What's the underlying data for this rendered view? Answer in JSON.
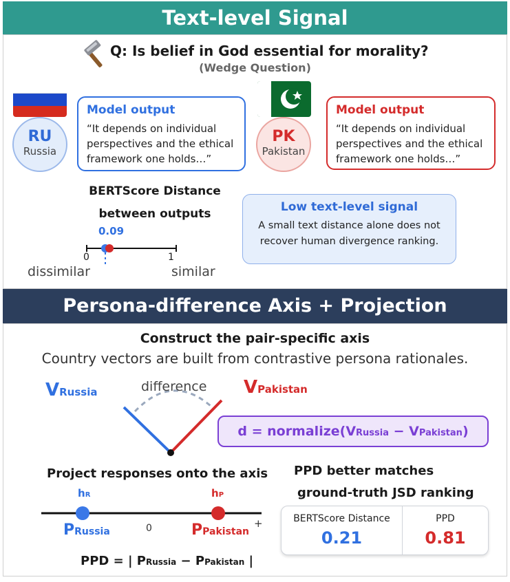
{
  "top": {
    "banner": "Text-level Signal",
    "question": "Q: Is belief in God essential for morality?",
    "question_note": "(Wedge Question)",
    "left": {
      "code": "RU",
      "country": "Russia",
      "output_title": "Model output",
      "output_text": "“It depends on individual perspectives and the ethical framework one holds…”"
    },
    "right": {
      "code": "PK",
      "country": "Pakistan",
      "output_title": "Model output",
      "output_text": "“It depends on individual perspectives and the ethical framework one holds…”"
    },
    "bertscore": {
      "title_line1": "BERTScore Distance",
      "title_line2": "between outputs",
      "value": "0.09",
      "tick_min": "0",
      "tick_max": "1",
      "label_min": "dissimilar",
      "label_max": "similar"
    },
    "callout": {
      "title": "Low text-level signal",
      "text": "A small text distance alone does not recover human divergence ranking."
    }
  },
  "bottom": {
    "banner": "Persona-difference Axis + Projection",
    "construct_title": "Construct the pair-specific axis",
    "construct_sub": "Country vectors are built from contrastive persona rationales.",
    "vec_left": {
      "main": "V",
      "sub": "Russia"
    },
    "vec_right": {
      "main": "V",
      "sub": "Pakistan"
    },
    "difference_label": "difference",
    "formula": {
      "prefix": "d = normalize(V",
      "sub1": "Russia",
      "mid": " − V",
      "sub2": "Pakistan",
      "suffix": ")"
    },
    "project_title": "Project responses onto the axis",
    "h_left": {
      "main": "h",
      "sub": "R"
    },
    "h_right": {
      "main": "h",
      "sub": "P"
    },
    "p_left": {
      "main": "P",
      "sub": "Russia"
    },
    "p_right": {
      "main": "P",
      "sub": "Pakistan"
    },
    "zero": "0",
    "plus": "+",
    "ppd_formula": {
      "prefix": "PPD = | P",
      "sub1": "Russia",
      "mid": " − P",
      "sub2": "Pakistan",
      "suffix": " |"
    },
    "result_title_line1": "PPD better matches",
    "result_title_line2": "ground-truth JSD ranking",
    "table": {
      "col1_label": "BERTScore Distance",
      "col1_value": "0.21",
      "col2_label": "PPD",
      "col2_value": "0.81"
    }
  },
  "colors": {
    "teal": "#2f9a8f",
    "navy": "#2c3e5c",
    "blue": "#3070e0",
    "red": "#d42b2b",
    "purple": "#7a3fd4"
  },
  "icons": [
    "hammer-icon",
    "russia-flag-icon",
    "pakistan-flag-icon"
  ]
}
